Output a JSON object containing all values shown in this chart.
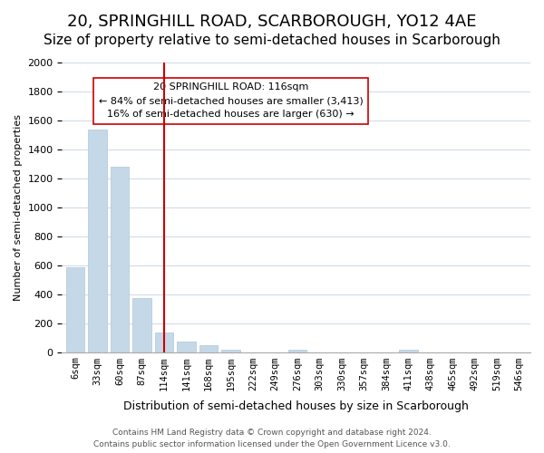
{
  "title": "20, SPRINGHILL ROAD, SCARBOROUGH, YO12 4AE",
  "subtitle": "Size of property relative to semi-detached houses in Scarborough",
  "bar_labels": [
    "6sqm",
    "33sqm",
    "60sqm",
    "87sqm",
    "114sqm",
    "141sqm",
    "168sqm",
    "195sqm",
    "222sqm",
    "249sqm",
    "276sqm",
    "303sqm",
    "330sqm",
    "357sqm",
    "384sqm",
    "411sqm",
    "438sqm",
    "465sqm",
    "492sqm",
    "519sqm",
    "546sqm"
  ],
  "bar_values": [
    585,
    1535,
    1280,
    375,
    135,
    70,
    48,
    18,
    0,
    0,
    18,
    0,
    0,
    0,
    0,
    15,
    0,
    0,
    0,
    0,
    0
  ],
  "bar_color": "#c5d8e8",
  "bar_edge_color": "#aec6d8",
  "ylim": [
    0,
    2000
  ],
  "ylabel": "Number of semi-detached properties",
  "xlabel": "Distribution of semi-detached houses by size in Scarborough",
  "vline_x": 4,
  "vline_color": "#cc0000",
  "annotation_title": "20 SPRINGHILL ROAD: 116sqm",
  "annotation_line1": "← 84% of semi-detached houses are smaller (3,413)",
  "annotation_line2": "16% of semi-detached houses are larger (630) →",
  "footer_line1": "Contains HM Land Registry data © Crown copyright and database right 2024.",
  "footer_line2": "Contains public sector information licensed under the Open Government Licence v3.0.",
  "title_fontsize": 13,
  "subtitle_fontsize": 11,
  "grid_color": "#d0dce8",
  "yticks": [
    0,
    200,
    400,
    600,
    800,
    1000,
    1200,
    1400,
    1600,
    1800,
    2000
  ]
}
